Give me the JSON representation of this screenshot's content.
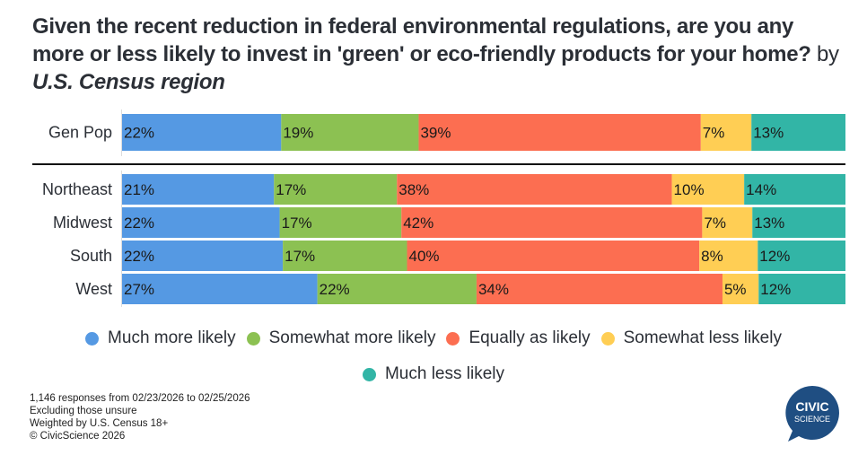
{
  "title": {
    "main": "Given the recent reduction in federal environmental regulations, are you any more or less likely to invest in 'green' or eco-friendly products for your home?",
    "by": "by",
    "dimension": "U.S. Census region"
  },
  "chart_data": {
    "type": "bar",
    "orientation": "horizontal-stacked-100",
    "title": "Given the recent reduction in federal environmental regulations, are you any more or less likely to invest in 'green' or eco-friendly products for your home? by U.S. Census region",
    "categories": [
      "Gen Pop",
      "Northeast",
      "Midwest",
      "South",
      "West"
    ],
    "groups": [
      [
        "Gen Pop"
      ],
      [
        "Northeast",
        "Midwest",
        "South",
        "West"
      ]
    ],
    "series": [
      {
        "name": "Much more likely",
        "color": "#5599e3",
        "values": [
          22,
          21,
          22,
          22,
          27
        ]
      },
      {
        "name": "Somewhat more likely",
        "color": "#8cc152",
        "values": [
          19,
          17,
          17,
          17,
          22
        ]
      },
      {
        "name": "Equally as likely",
        "color": "#fc6e51",
        "values": [
          39,
          38,
          42,
          40,
          34
        ]
      },
      {
        "name": "Somewhat less likely",
        "color": "#ffce54",
        "values": [
          7,
          10,
          7,
          8,
          5
        ]
      },
      {
        "name": "Much less likely",
        "color": "#32b5a6",
        "values": [
          13,
          14,
          13,
          12,
          12
        ]
      }
    ],
    "value_suffix": "%",
    "xlim": [
      0,
      100
    ],
    "legend_position": "bottom",
    "grid": false
  },
  "legend": {
    "row1": [
      "Much more likely",
      "Somewhat more likely",
      "Equally as likely",
      "Somewhat less likely"
    ],
    "row2": [
      "Much less likely"
    ]
  },
  "footer": {
    "responses": "1,146 responses from 02/23/2026 to 02/25/2026",
    "exclusion": "Excluding those unsure",
    "weighting": "Weighted by U.S. Census 18+",
    "copyright": "© CivicScience 2026"
  },
  "logo": {
    "line1": "CIVIC",
    "line2": "SCIENCE",
    "color": "#1f4e82"
  }
}
